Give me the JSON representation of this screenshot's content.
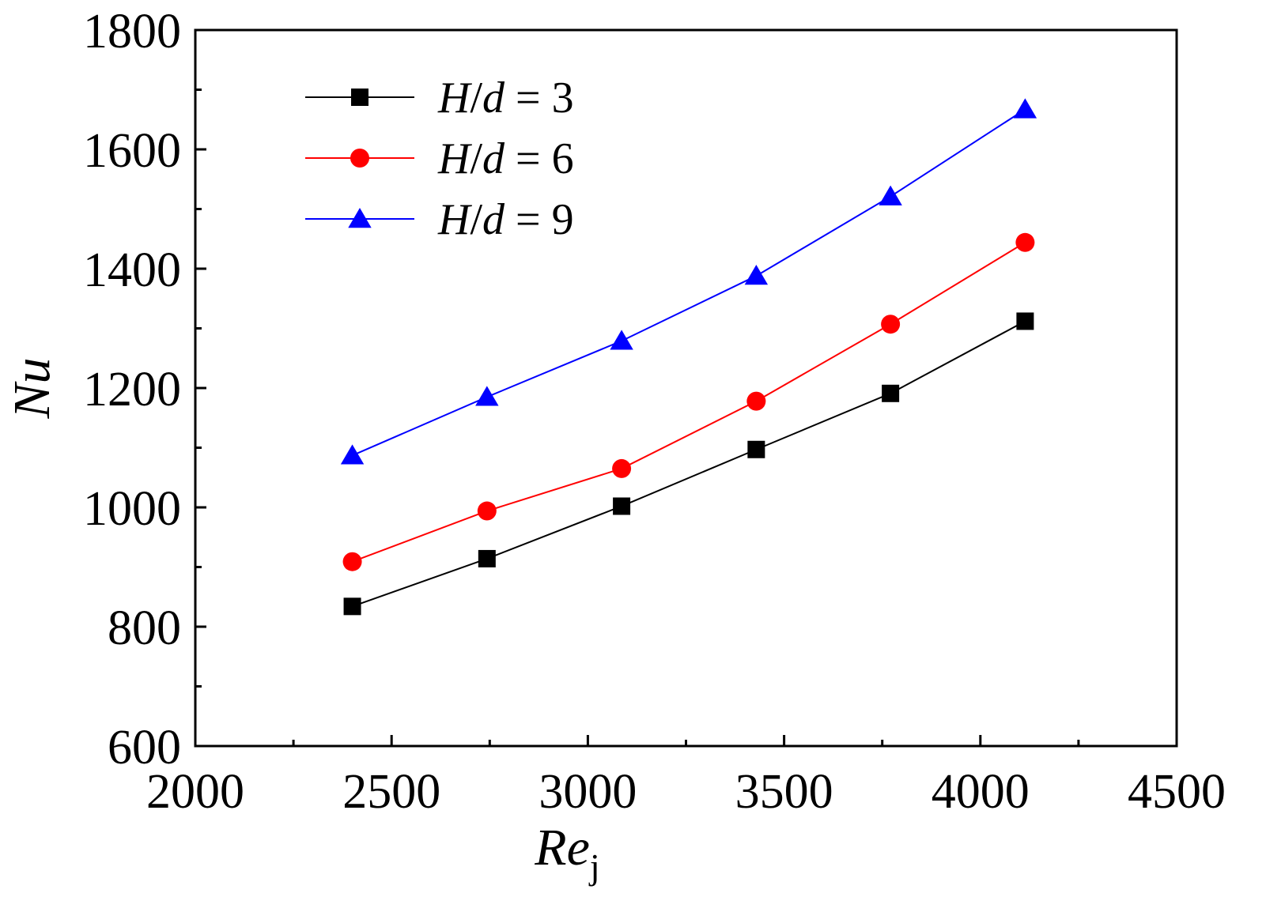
{
  "chart_data": {
    "type": "line",
    "title": "",
    "xlabel": "Re",
    "xlabel_sub": "j",
    "ylabel": "Nu",
    "xlim": [
      2000,
      4500
    ],
    "ylim": [
      600,
      1800
    ],
    "xticks": [
      2000,
      2500,
      3000,
      3500,
      4000,
      4500
    ],
    "yticks": [
      600,
      800,
      1000,
      1200,
      1400,
      1600,
      1800
    ],
    "x_minor_step": 250,
    "y_minor_step": 100,
    "legend_position": "top-left",
    "x": [
      2400,
      2743,
      3086,
      3429,
      3771,
      4114
    ],
    "series": [
      {
        "name": "H/d = 3",
        "label_parts": [
          "H",
          "/",
          "d",
          " = 3"
        ],
        "color": "#000000",
        "marker": "square",
        "values": [
          834,
          914,
          1002,
          1097,
          1191,
          1312
        ]
      },
      {
        "name": "H/d = 6",
        "label_parts": [
          "H",
          "/",
          "d",
          " = 6"
        ],
        "color": "#ff0000",
        "marker": "circle",
        "values": [
          909,
          994,
          1065,
          1178,
          1307,
          1444
        ]
      },
      {
        "name": "H/d = 9",
        "label_parts": [
          "H",
          "/",
          "d",
          " = 9"
        ],
        "color": "#0000ff",
        "marker": "triangle",
        "values": [
          1087,
          1185,
          1279,
          1388,
          1521,
          1667
        ]
      }
    ]
  }
}
